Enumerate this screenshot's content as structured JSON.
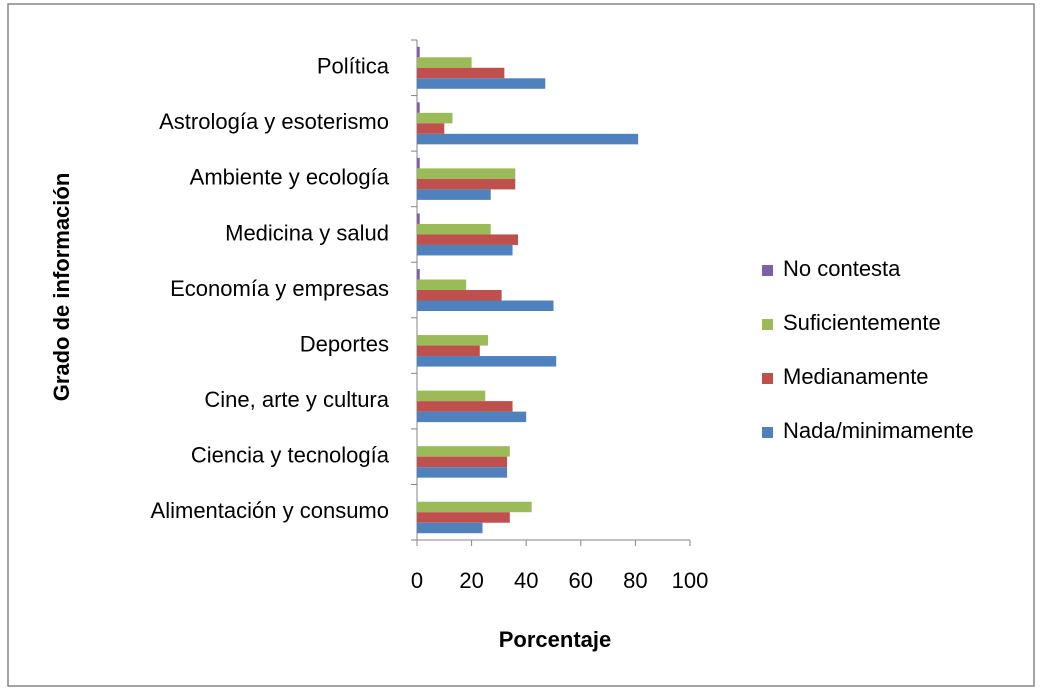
{
  "chart_data": {
    "type": "barh",
    "x_label": "Porcentaje",
    "y_label": "Grado de información",
    "categories": [
      "Política",
      "Astrología y esoterismo",
      "Ambiente y ecología",
      "Medicina y salud",
      "Economía y empresas",
      "Deportes",
      "Cine, arte y cultura",
      "Ciencia y tecnología",
      "Alimentación y consumo"
    ],
    "series": [
      {
        "name": "No contesta",
        "color": "#7f5fa8",
        "values": [
          1,
          1,
          1,
          1,
          1,
          0,
          0,
          0,
          0
        ]
      },
      {
        "name": "Suficientemente",
        "color": "#9bbb59",
        "values": [
          20,
          13,
          36,
          27,
          18,
          26,
          25,
          34,
          42
        ]
      },
      {
        "name": "Medianamente",
        "color": "#c0504d",
        "values": [
          32,
          10,
          36,
          37,
          31,
          23,
          35,
          33,
          34
        ]
      },
      {
        "name": "Nada/minimamente",
        "color": "#4f81bd",
        "values": [
          47,
          81,
          27,
          35,
          50,
          51,
          40,
          33,
          24
        ]
      }
    ],
    "xlim": [
      0,
      100
    ],
    "xticks": [
      0,
      20,
      40,
      60,
      80,
      100
    ],
    "legend": "right"
  }
}
